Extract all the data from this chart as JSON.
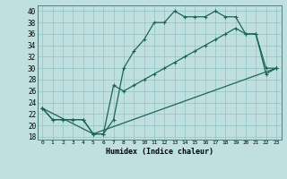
{
  "title": "",
  "xlabel": "Humidex (Indice chaleur)",
  "bg_color": "#c0e0e0",
  "grid_color": "#98c8c8",
  "line_color": "#1a6655",
  "xlim": [
    -0.5,
    23.5
  ],
  "ylim": [
    17.5,
    41
  ],
  "xticks": [
    0,
    1,
    2,
    3,
    4,
    5,
    6,
    7,
    8,
    9,
    10,
    11,
    12,
    13,
    14,
    15,
    16,
    17,
    18,
    19,
    20,
    21,
    22,
    23
  ],
  "yticks": [
    18,
    20,
    22,
    24,
    26,
    28,
    30,
    32,
    34,
    36,
    38,
    40
  ],
  "series1_x": [
    0,
    1,
    2,
    3,
    4,
    5,
    6,
    7,
    8,
    9,
    10,
    11,
    12,
    13,
    14,
    15,
    16,
    17,
    18,
    19,
    20,
    21,
    22,
    23
  ],
  "series1_y": [
    23,
    21,
    21,
    21,
    21,
    18.5,
    18.5,
    21,
    30,
    33,
    35,
    38,
    38,
    40,
    39,
    39,
    39,
    40,
    39,
    39,
    36,
    36,
    30,
    30
  ],
  "series2_x": [
    0,
    1,
    2,
    3,
    4,
    5,
    6,
    7,
    8,
    9,
    10,
    11,
    12,
    13,
    14,
    15,
    16,
    17,
    18,
    19,
    20,
    21,
    22,
    23
  ],
  "series2_y": [
    23,
    21,
    21,
    21,
    21,
    18.5,
    18.5,
    27,
    26,
    27,
    28,
    29,
    30,
    31,
    32,
    33,
    34,
    35,
    36,
    37,
    36,
    36,
    29,
    30
  ],
  "series3_x": [
    0,
    5,
    23
  ],
  "series3_y": [
    23,
    18.5,
    30
  ]
}
